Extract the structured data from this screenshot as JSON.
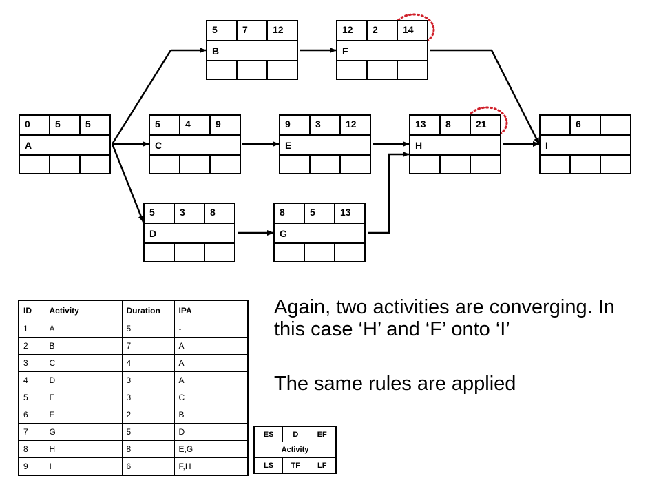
{
  "nodes": [
    {
      "id": "A",
      "es": "0",
      "d": "5",
      "ef": "5"
    },
    {
      "id": "B",
      "es": "5",
      "d": "7",
      "ef": "12"
    },
    {
      "id": "C",
      "es": "5",
      "d": "4",
      "ef": "9"
    },
    {
      "id": "D",
      "es": "5",
      "d": "3",
      "ef": "8"
    },
    {
      "id": "E",
      "es": "9",
      "d": "3",
      "ef": "12"
    },
    {
      "id": "F",
      "es": "12",
      "d": "2",
      "ef": "14"
    },
    {
      "id": "G",
      "es": "8",
      "d": "5",
      "ef": "13"
    },
    {
      "id": "H",
      "es": "13",
      "d": "8",
      "ef": "21"
    },
    {
      "id": "I",
      "es": "",
      "d": "6",
      "ef": ""
    }
  ],
  "table": {
    "headers": [
      "ID",
      "Activity",
      "Duration",
      "IPA"
    ],
    "rows": [
      [
        "1",
        "A",
        "5",
        "-"
      ],
      [
        "2",
        "B",
        "7",
        "A"
      ],
      [
        "3",
        "C",
        "4",
        "A"
      ],
      [
        "4",
        "D",
        "3",
        "A"
      ],
      [
        "5",
        "E",
        "3",
        "C"
      ],
      [
        "6",
        "F",
        "2",
        "B"
      ],
      [
        "7",
        "G",
        "5",
        "D"
      ],
      [
        "8",
        "H",
        "8",
        "E,G"
      ],
      [
        "9",
        "I",
        "6",
        "F,H"
      ]
    ]
  },
  "note": {
    "line1": "Again, two activities are converging.  In this case ‘H’ and ‘F’ onto ‘I’",
    "line2": "The same rules are applied"
  },
  "legend": {
    "es": "ES",
    "d": "D",
    "ef": "EF",
    "activity": "Activity",
    "ls": "LS",
    "tf": "TF",
    "lf": "LF"
  },
  "highlight_color": "#d0202a"
}
